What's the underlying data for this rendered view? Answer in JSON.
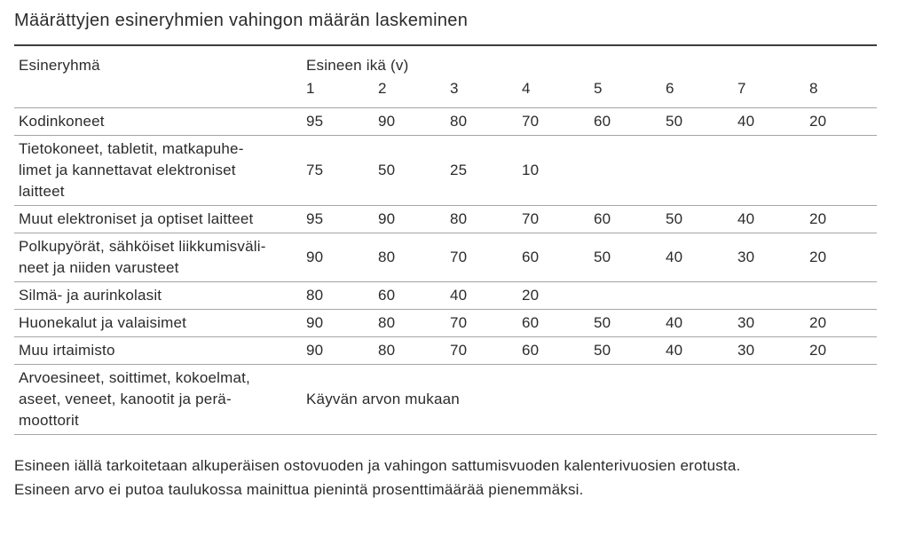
{
  "title": "Määrättyjen esineryhmien vahingon määrän laskeminen",
  "table": {
    "headers": {
      "item_group": "Esineryhmä",
      "item_age": "Esineen ikä (v)",
      "age_years": [
        "1",
        "2",
        "3",
        "4",
        "5",
        "6",
        "7",
        "8"
      ]
    },
    "rows": [
      {
        "label": "Kodinkoneet",
        "values": [
          "95",
          "90",
          "80",
          "70",
          "60",
          "50",
          "40",
          "20"
        ]
      },
      {
        "label": "Tietokoneet, tabletit, matkapuhe-\nlimet ja kannettavat elektroniset\nlaitteet",
        "values": [
          "75",
          "50",
          "25",
          "10",
          "",
          "",
          "",
          ""
        ]
      },
      {
        "label": "Muut elektroniset ja optiset laitteet",
        "values": [
          "95",
          "90",
          "80",
          "70",
          "60",
          "50",
          "40",
          "20"
        ]
      },
      {
        "label": "Polkupyörät, sähköiset liikkumisväli-\nneet ja niiden varusteet",
        "values": [
          "90",
          "80",
          "70",
          "60",
          "50",
          "40",
          "30",
          "20"
        ]
      },
      {
        "label": "Silmä- ja aurinkolasit",
        "values": [
          "80",
          "60",
          "40",
          "20",
          "",
          "",
          "",
          ""
        ]
      },
      {
        "label": "Huonekalut ja valaisimet",
        "values": [
          "90",
          "80",
          "70",
          "60",
          "50",
          "40",
          "30",
          "20"
        ]
      },
      {
        "label": "Muu irtaimisto",
        "values": [
          "90",
          "80",
          "70",
          "60",
          "50",
          "40",
          "30",
          "20"
        ]
      }
    ],
    "special_row": {
      "label": "Arvoesineet, soittimet, kokoelmat,\naseet, veneet, kanootit ja perä-\nmoottorit",
      "value": "Käyvän arvon mukaan"
    }
  },
  "footnotes": [
    "Esineen iällä tarkoitetaan alkuperäisen ostovuoden ja vahingon sattumisvuoden kalenterivuosien erotusta.",
    "Esineen arvo ei putoa taulukossa mainittua pienintä prosenttimäärää pienemmäksi."
  ],
  "colors": {
    "text": "#2b2b2b",
    "top_rule": "#3c3c3c",
    "row_rule": "#a5a5a5",
    "background": "#ffffff"
  }
}
